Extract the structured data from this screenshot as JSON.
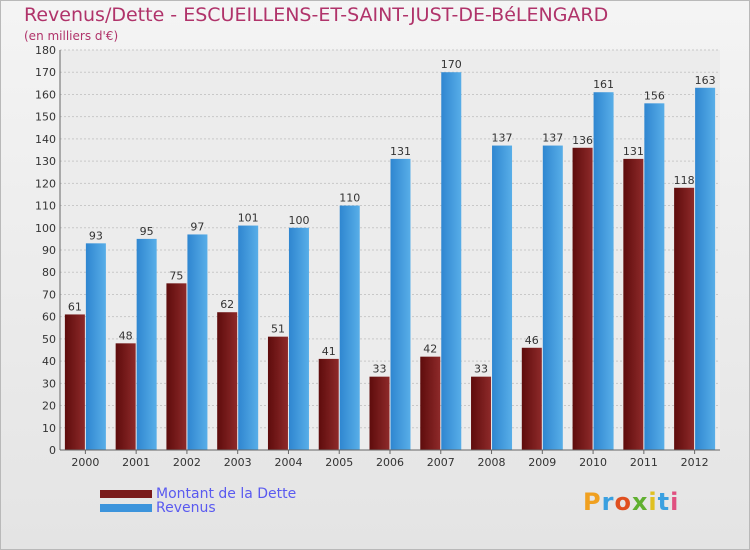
{
  "title": "Revenus/Dette - ESCUEILLENS-ET-SAINT-JUST-DE-BéLENGARD",
  "subtitle": "(en milliers d'€)",
  "colors": {
    "dette": "#7a1a1a",
    "revenus": "#3c94dc",
    "title": "#b0336a",
    "legend_text": "#5a5af0"
  },
  "legend": {
    "dette": "Montant de la Dette",
    "revenus": "Revenus"
  },
  "logo": {
    "text": "Proxiti"
  },
  "chart_data": {
    "type": "bar",
    "categories": [
      "2000",
      "2001",
      "2002",
      "2003",
      "2004",
      "2005",
      "2006",
      "2007",
      "2008",
      "2009",
      "2010",
      "2011",
      "2012"
    ],
    "series": [
      {
        "name": "Montant de la Dette",
        "values": [
          61,
          48,
          75,
          62,
          51,
          41,
          33,
          42,
          33,
          46,
          136,
          131,
          118
        ]
      },
      {
        "name": "Revenus",
        "values": [
          93,
          95,
          97,
          101,
          100,
          110,
          131,
          170,
          137,
          137,
          161,
          156,
          163
        ]
      }
    ],
    "ylim": [
      0,
      180
    ],
    "yticks": [
      0,
      10,
      20,
      30,
      40,
      50,
      60,
      70,
      80,
      90,
      100,
      110,
      120,
      130,
      140,
      150,
      160,
      170,
      180
    ],
    "grid": true,
    "legend_position": "bottom-left"
  }
}
